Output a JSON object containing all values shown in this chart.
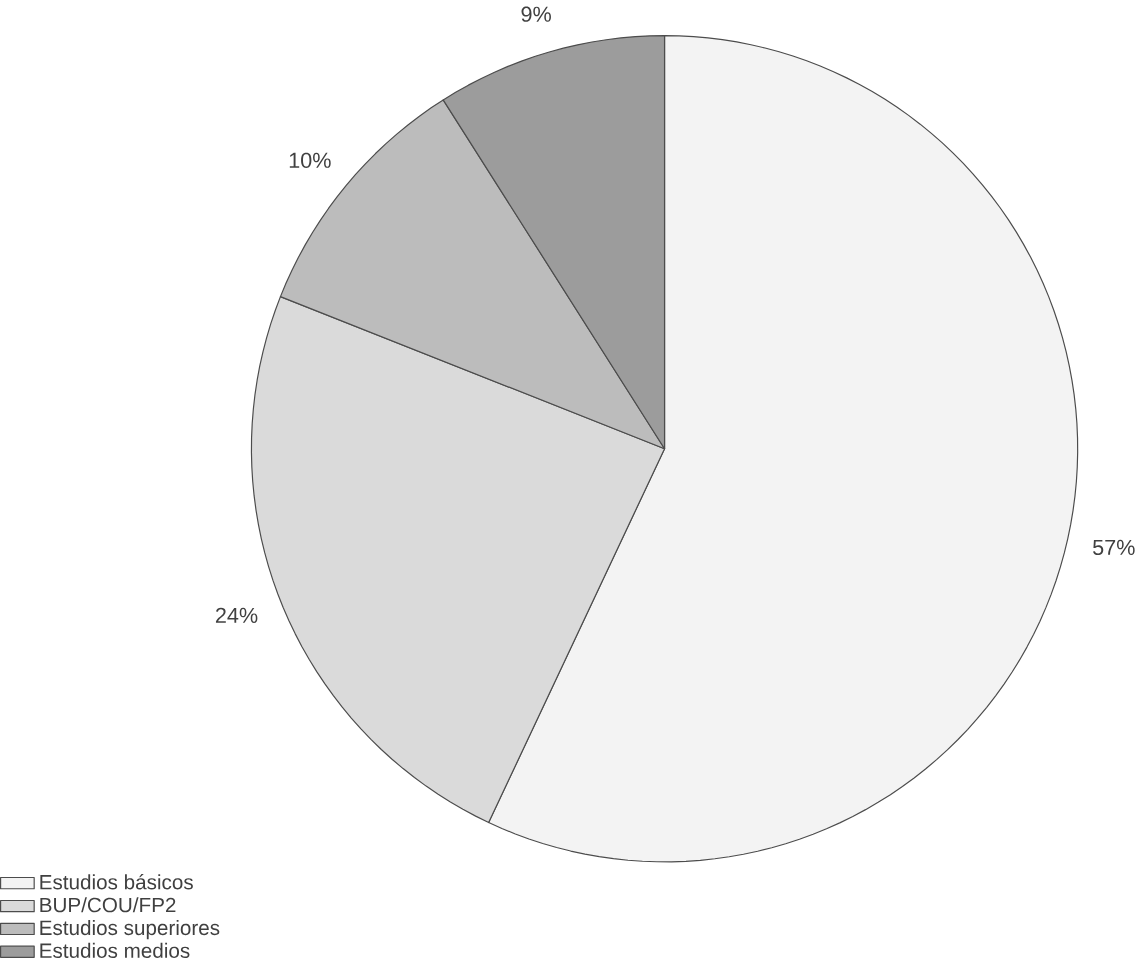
{
  "chart_data": {
    "type": "pie",
    "categories": [
      "Estudios básicos",
      "BUP/COU/FP2",
      "Estudios superiores",
      "Estudios medios"
    ],
    "values": [
      57,
      24,
      10,
      9
    ],
    "value_labels": [
      "57%",
      "24%",
      "10%",
      "9%"
    ],
    "colors": [
      "#f3f3f3",
      "#dadada",
      "#bcbcbc",
      "#9c9c9c"
    ],
    "legend": "bottom left"
  }
}
